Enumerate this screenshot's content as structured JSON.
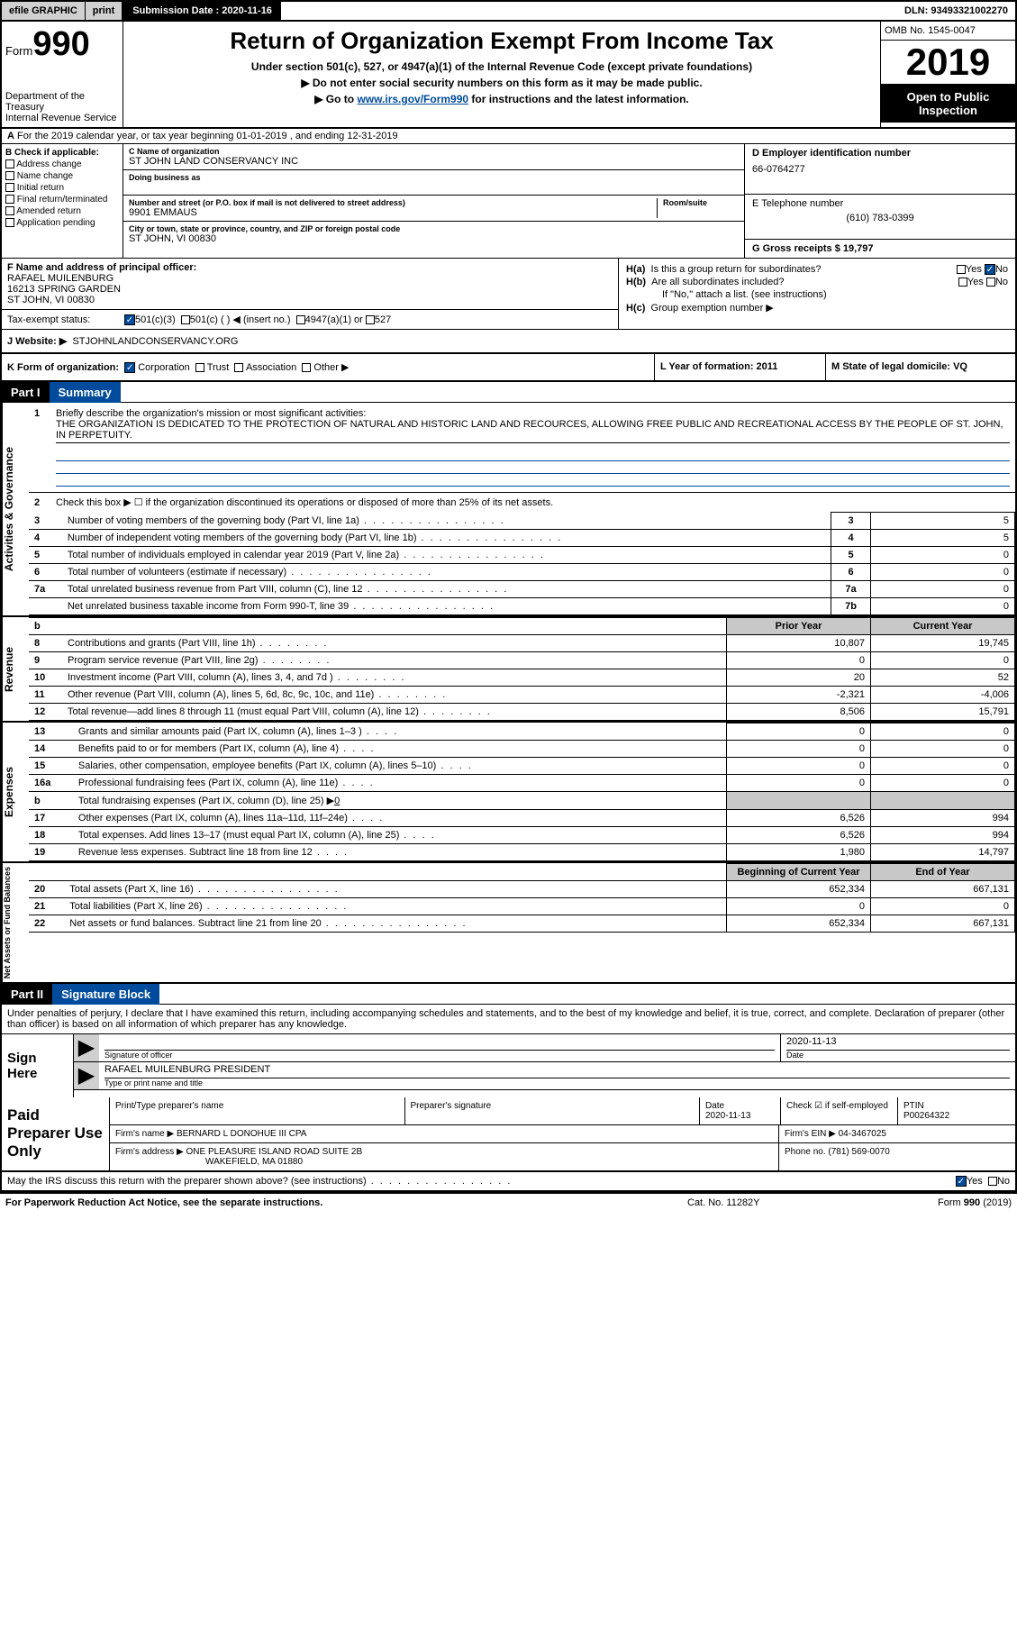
{
  "topbar": {
    "efile": "efile GRAPHIC",
    "print": "print",
    "submission_label": "Submission Date : 2020-11-16",
    "dln": "DLN: 93493321002270"
  },
  "header": {
    "form_word": "Form",
    "form_num": "990",
    "dept": "Department of the Treasury",
    "irs": "Internal Revenue Service",
    "title": "Return of Organization Exempt From Income Tax",
    "sub": "Under section 501(c), 527, or 4947(a)(1) of the Internal Revenue Code (except private foundations)",
    "inst1": "▶ Do not enter social security numbers on this form as it may be made public.",
    "inst2_pre": "▶ Go to ",
    "inst2_link": "www.irs.gov/Form990",
    "inst2_post": " for instructions and the latest information.",
    "omb": "OMB No. 1545-0047",
    "year": "2019",
    "open": "Open to Public Inspection"
  },
  "row_a": {
    "label": "A",
    "text": "For the 2019 calendar year, or tax year beginning 01-01-2019    , and ending 12-31-2019"
  },
  "col_b": {
    "label": "B Check if applicable:",
    "items": [
      "Address change",
      "Name change",
      "Initial return",
      "Final return/terminated",
      "Amended return",
      "Application pending"
    ]
  },
  "col_c": {
    "name_label": "C Name of organization",
    "name": "ST JOHN LAND CONSERVANCY INC",
    "dba_label": "Doing business as",
    "dba": "",
    "street_label": "Number and street (or P.O. box if mail is not delivered to street address)",
    "room_label": "Room/suite",
    "street": "9901 EMMAUS",
    "city_label": "City or town, state or province, country, and ZIP or foreign postal code",
    "city": "ST JOHN, VI  00830"
  },
  "col_d": {
    "ein_label": "D Employer identification number",
    "ein": "66-0764277",
    "tel_label": "E Telephone number",
    "tel": "(610) 783-0399",
    "gross_label": "G Gross receipts $ 19,797"
  },
  "f": {
    "label": "F  Name and address of principal officer:",
    "name": "RAFAEL MUILENBURG",
    "addr1": "16213 SPRING GARDEN",
    "addr2": "ST JOHN, VI  00830"
  },
  "h": {
    "a_label": "H(a)",
    "a_text": "Is this a group return for subordinates?",
    "a_yes": "Yes",
    "a_no": "No",
    "b_label": "H(b)",
    "b_text": "Are all subordinates included?",
    "b_note": "If \"No,\" attach a list. (see instructions)",
    "c_label": "H(c)",
    "c_text": "Group exemption number ▶"
  },
  "tax_exempt": {
    "label": "Tax-exempt status:",
    "o1": "501(c)(3)",
    "o2": "501(c) (  ) ◀ (insert no.)",
    "o3": "4947(a)(1) or",
    "o4": "527"
  },
  "website": {
    "label": "J   Website: ▶",
    "val": "STJOHNLANDCONSERVANCY.ORG"
  },
  "k": {
    "label": "K Form of organization:",
    "o1": "Corporation",
    "o2": "Trust",
    "o3": "Association",
    "o4": "Other ▶"
  },
  "l": {
    "label": "L Year of formation: 2011"
  },
  "m": {
    "label": "M State of legal domicile: VQ"
  },
  "part1": {
    "num": "Part I",
    "title": "Summary"
  },
  "mission": {
    "num": "1",
    "label": "Briefly describe the organization's mission or most significant activities:",
    "text": "THE ORGANIZATION IS DEDICATED TO THE PROTECTION OF NATURAL AND HISTORIC LAND AND RECOURCES, ALLOWING FREE PUBLIC AND RECREATIONAL ACCESS BY THE PEOPLE OF ST. JOHN, IN PERPETUITY."
  },
  "gov": {
    "l2": "Check this box ▶ ☐  if the organization discontinued its operations or disposed of more than 25% of its net assets.",
    "rows": [
      {
        "n": "3",
        "d": "Number of voting members of the governing body (Part VI, line 1a)",
        "box": "3",
        "v": "5"
      },
      {
        "n": "4",
        "d": "Number of independent voting members of the governing body (Part VI, line 1b)",
        "box": "4",
        "v": "5"
      },
      {
        "n": "5",
        "d": "Total number of individuals employed in calendar year 2019 (Part V, line 2a)",
        "box": "5",
        "v": "0"
      },
      {
        "n": "6",
        "d": "Total number of volunteers (estimate if necessary)",
        "box": "6",
        "v": "0"
      },
      {
        "n": "7a",
        "d": "Total unrelated business revenue from Part VIII, column (C), line 12",
        "box": "7a",
        "v": "0"
      },
      {
        "n": "",
        "d": "Net unrelated business taxable income from Form 990-T, line 39",
        "box": "7b",
        "v": "0"
      }
    ]
  },
  "rev": {
    "side": "Revenue",
    "hdr_prior": "Prior Year",
    "hdr_curr": "Current Year",
    "rows": [
      {
        "n": "8",
        "d": "Contributions and grants (Part VIII, line 1h)",
        "p": "10,807",
        "c": "19,745"
      },
      {
        "n": "9",
        "d": "Program service revenue (Part VIII, line 2g)",
        "p": "0",
        "c": "0"
      },
      {
        "n": "10",
        "d": "Investment income (Part VIII, column (A), lines 3, 4, and 7d )",
        "p": "20",
        "c": "52"
      },
      {
        "n": "11",
        "d": "Other revenue (Part VIII, column (A), lines 5, 6d, 8c, 9c, 10c, and 11e)",
        "p": "-2,321",
        "c": "-4,006"
      },
      {
        "n": "12",
        "d": "Total revenue—add lines 8 through 11 (must equal Part VIII, column (A), line 12)",
        "p": "8,506",
        "c": "15,791"
      }
    ]
  },
  "exp": {
    "side": "Expenses",
    "rows": [
      {
        "n": "13",
        "d": "Grants and similar amounts paid (Part IX, column (A), lines 1–3 )",
        "p": "0",
        "c": "0"
      },
      {
        "n": "14",
        "d": "Benefits paid to or for members (Part IX, column (A), line 4)",
        "p": "0",
        "c": "0"
      },
      {
        "n": "15",
        "d": "Salaries, other compensation, employee benefits (Part IX, column (A), lines 5–10)",
        "p": "0",
        "c": "0"
      },
      {
        "n": "16a",
        "d": "Professional fundraising fees (Part IX, column (A), line 11e)",
        "p": "0",
        "c": "0"
      }
    ],
    "l16b": "Total fundraising expenses (Part IX, column (D), line 25) ▶",
    "l16b_val": "0",
    "rows2": [
      {
        "n": "17",
        "d": "Other expenses (Part IX, column (A), lines 11a–11d, 11f–24e)",
        "p": "6,526",
        "c": "994"
      },
      {
        "n": "18",
        "d": "Total expenses. Add lines 13–17 (must equal Part IX, column (A), line 25)",
        "p": "6,526",
        "c": "994"
      },
      {
        "n": "19",
        "d": "Revenue less expenses. Subtract line 18 from line 12",
        "p": "1,980",
        "c": "14,797"
      }
    ]
  },
  "net": {
    "side": "Net Assets or Fund Balances",
    "hdr_beg": "Beginning of Current Year",
    "hdr_end": "End of Year",
    "rows": [
      {
        "n": "20",
        "d": "Total assets (Part X, line 16)",
        "p": "652,334",
        "c": "667,131"
      },
      {
        "n": "21",
        "d": "Total liabilities (Part X, line 26)",
        "p": "0",
        "c": "0"
      },
      {
        "n": "22",
        "d": "Net assets or fund balances. Subtract line 21 from line 20",
        "p": "652,334",
        "c": "667,131"
      }
    ]
  },
  "part2": {
    "num": "Part II",
    "title": "Signature Block"
  },
  "sig": {
    "decl": "Under penalties of perjury, I declare that I have examined this return, including accompanying schedules and statements, and to the best of my knowledge and belief, it is true, correct, and complete. Declaration of preparer (other than officer) is based on all information of which preparer has any knowledge.",
    "sign_here": "Sign Here",
    "sig_of_officer": "Signature of officer",
    "date_label": "Date",
    "date": "2020-11-13",
    "name_title": "RAFAEL MUILENBURG PRESIDENT",
    "type_label": "Type or print name and title"
  },
  "paid": {
    "label": "Paid Preparer Use Only",
    "h1": "Print/Type preparer's name",
    "h2": "Preparer's signature",
    "h3": "Date",
    "date": "2020-11-13",
    "h4": "Check ☑ if self-employed",
    "h5": "PTIN",
    "ptin": "P00264322",
    "firm_name_l": "Firm's name     ▶",
    "firm_name": "BERNARD L DONOHUE III CPA",
    "firm_ein_l": "Firm's EIN ▶",
    "firm_ein": "04-3467025",
    "firm_addr_l": "Firm's address ▶",
    "firm_addr1": "ONE PLEASURE ISLAND ROAD SUITE 2B",
    "firm_addr2": "WAKEFIELD, MA  01880",
    "phone_l": "Phone no.",
    "phone": "(781) 569-0070"
  },
  "irs_discuss": {
    "q": "May the IRS discuss this return with the preparer shown above? (see instructions)",
    "yes": "Yes",
    "no": "No"
  },
  "footer": {
    "l": "For Paperwork Reduction Act Notice, see the separate instructions.",
    "m": "Cat. No. 11282Y",
    "r": "Form 990 (2019)"
  }
}
